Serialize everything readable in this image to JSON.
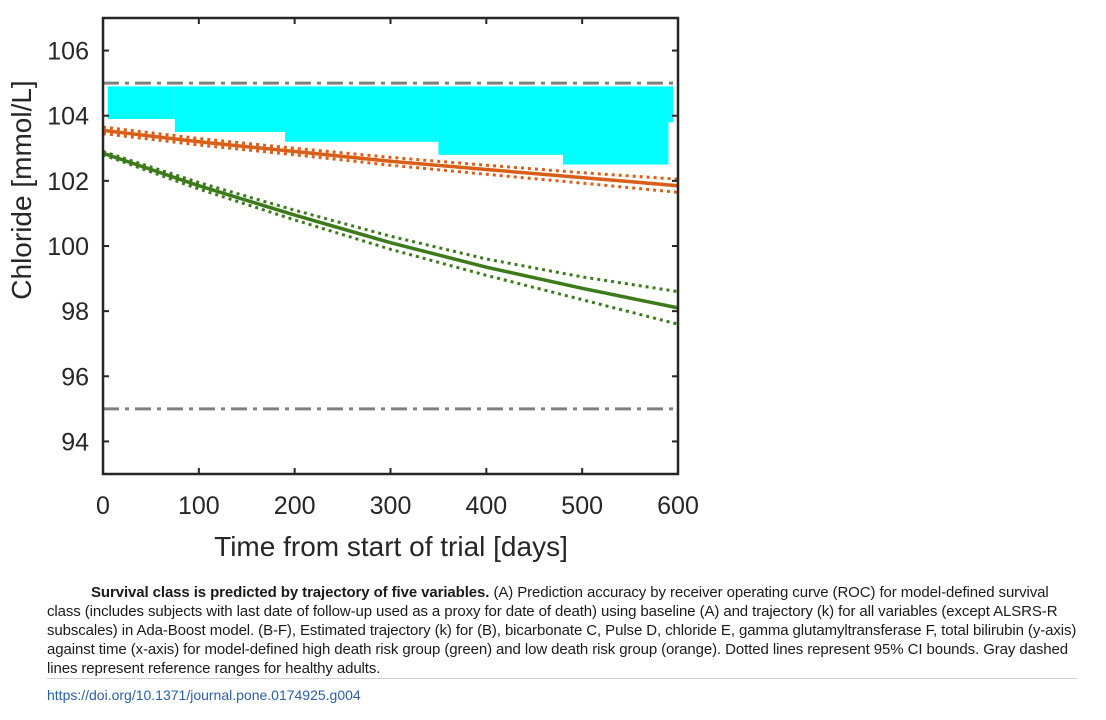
{
  "chart_data": {
    "type": "line",
    "xlabel": "Time from start of trial [days]",
    "ylabel": "Chloride [mmol/L]",
    "xlim": [
      0,
      600
    ],
    "ylim": [
      93,
      107
    ],
    "xticks": [
      0,
      100,
      200,
      300,
      400,
      500,
      600
    ],
    "yticks": [
      94,
      96,
      98,
      100,
      102,
      104,
      106
    ],
    "grid": false,
    "legend": "none",
    "reference_lines": [
      {
        "y": 105,
        "style": "dash-dot",
        "color": "#808080"
      },
      {
        "y": 95,
        "style": "dash-dot",
        "color": "#808080"
      }
    ],
    "reference_band": {
      "color": "#00ffff",
      "upper": 104.9,
      "lower_steps": [
        {
          "x": [
            5,
            75
          ],
          "y": 103.9
        },
        {
          "x": [
            75,
            190
          ],
          "y": 103.5
        },
        {
          "x": [
            190,
            350
          ],
          "y": 103.2
        },
        {
          "x": [
            350,
            480
          ],
          "y": 102.8
        },
        {
          "x": [
            480,
            590
          ],
          "y": 102.5
        },
        {
          "x": [
            590,
            595
          ],
          "y": 103.8
        }
      ]
    },
    "series": [
      {
        "color": "#d95f19",
        "x": [
          0,
          100,
          200,
          300,
          400,
          500,
          600
        ],
        "y": [
          103.55,
          103.2,
          102.9,
          102.6,
          102.35,
          102.1,
          101.85
        ],
        "ci_upper": [
          103.65,
          103.3,
          103.0,
          102.72,
          102.48,
          102.25,
          102.05
        ],
        "ci_lower": [
          103.45,
          103.1,
          102.8,
          102.48,
          102.2,
          101.93,
          101.65
        ]
      },
      {
        "color": "#3c7a1c",
        "x": [
          0,
          100,
          200,
          300,
          400,
          500,
          600
        ],
        "y": [
          102.85,
          101.85,
          100.95,
          100.1,
          99.35,
          98.7,
          98.1
        ],
        "ci_upper": [
          102.9,
          101.95,
          101.1,
          100.3,
          99.6,
          99.05,
          98.6
        ],
        "ci_lower": [
          102.8,
          101.75,
          100.8,
          99.9,
          99.1,
          98.35,
          97.6
        ]
      }
    ]
  },
  "caption": {
    "title": "Survival class is predicted by trajectory of five variables.",
    "body": "(A) Prediction accuracy by receiver operating curve (ROC) for model-defined survival class (includes subjects with last date of follow-up used as a proxy for date of death) using baseline (A) and trajectory (k) for all variables (except ALSRS-R subscales) in Ada-Boost model. (B-F), Estimated trajectory (k) for (B), bicarbonate C, Pulse D, chloride E, gamma glutamyltransferase F, total bilirubin (y-axis) against time (x-axis) for model-defined high death risk group (green) and low death risk group (orange). Dotted lines represent 95% CI bounds. Gray dashed lines represent reference ranges for healthy adults."
  },
  "doi": "https://doi.org/10.1371/journal.pone.0174925.g004"
}
